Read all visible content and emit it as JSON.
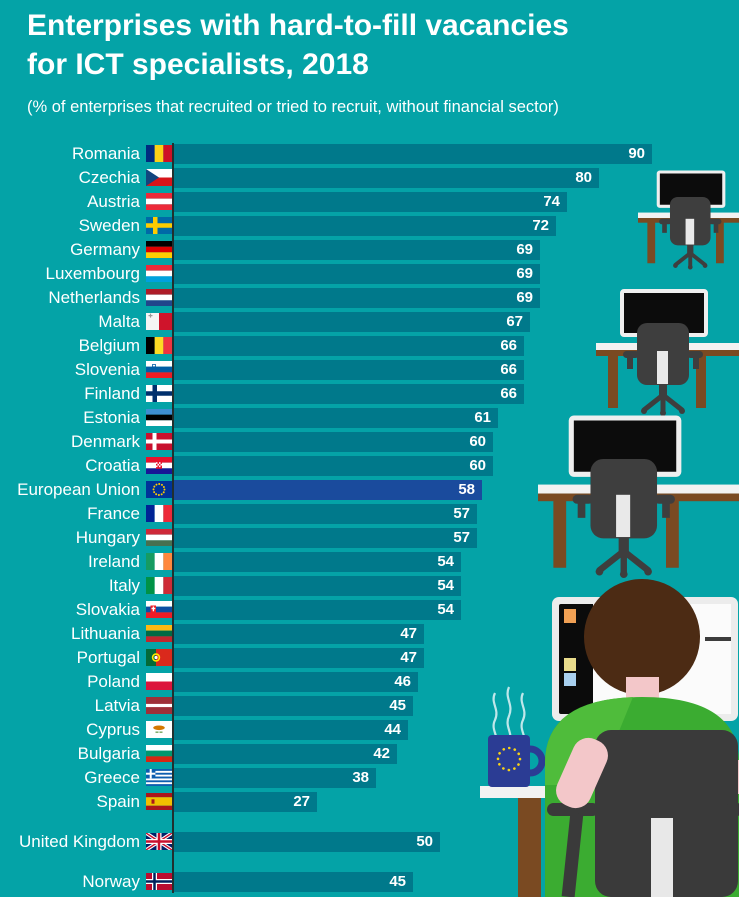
{
  "header": {
    "title_line1": "Enterprises with hard-to-fill vacancies",
    "title_line2": "for ICT specialists, 2018",
    "subtitle": "(% of enterprises that recruited or tried to recruit, without financial sector)"
  },
  "colors": {
    "background": "#04A3A7",
    "bar": "#00798B",
    "highlight": "#1A4B9D",
    "axis": "#21302F",
    "text": "#FFFFFF"
  },
  "chart_data": {
    "type": "bar",
    "orientation": "horizontal",
    "title": "Enterprises with hard-to-fill vacancies for ICT specialists, 2018",
    "subtitle": "(% of enterprises that recruited or tried to recruit, without financial sector)",
    "unit": "% of enterprises",
    "xlim": [
      0,
      100
    ],
    "grid": false,
    "legend": "none",
    "highlight_label": "European Union",
    "categories": [
      "Romania",
      "Czechia",
      "Austria",
      "Sweden",
      "Germany",
      "Luxembourg",
      "Netherlands",
      "Malta",
      "Belgium",
      "Slovenia",
      "Finland",
      "Estonia",
      "Denmark",
      "Croatia",
      "European Union",
      "France",
      "Hungary",
      "Ireland",
      "Italy",
      "Slovakia",
      "Lithuania",
      "Portugal",
      "Poland",
      "Latvia",
      "Cyprus",
      "Bulgaria",
      "Greece",
      "Spain",
      "United Kingdom",
      "Norway"
    ],
    "values": [
      90,
      80,
      74,
      72,
      69,
      69,
      69,
      67,
      66,
      66,
      66,
      61,
      60,
      60,
      58,
      57,
      57,
      54,
      54,
      54,
      47,
      47,
      46,
      45,
      44,
      42,
      38,
      27,
      50,
      45
    ],
    "rows": [
      {
        "label": "Romania",
        "value": 90,
        "flag": "ro",
        "group": "eu"
      },
      {
        "label": "Czechia",
        "value": 80,
        "flag": "cz",
        "group": "eu"
      },
      {
        "label": "Austria",
        "value": 74,
        "flag": "at",
        "group": "eu"
      },
      {
        "label": "Sweden",
        "value": 72,
        "flag": "se",
        "group": "eu"
      },
      {
        "label": "Germany",
        "value": 69,
        "flag": "de",
        "group": "eu"
      },
      {
        "label": "Luxembourg",
        "value": 69,
        "flag": "lu",
        "group": "eu"
      },
      {
        "label": "Netherlands",
        "value": 69,
        "flag": "nl",
        "group": "eu"
      },
      {
        "label": "Malta",
        "value": 67,
        "flag": "mt",
        "group": "eu"
      },
      {
        "label": "Belgium",
        "value": 66,
        "flag": "be",
        "group": "eu"
      },
      {
        "label": "Slovenia",
        "value": 66,
        "flag": "si",
        "group": "eu"
      },
      {
        "label": "Finland",
        "value": 66,
        "flag": "fi",
        "group": "eu"
      },
      {
        "label": "Estonia",
        "value": 61,
        "flag": "ee",
        "group": "eu"
      },
      {
        "label": "Denmark",
        "value": 60,
        "flag": "dk",
        "group": "eu"
      },
      {
        "label": "Croatia",
        "value": 60,
        "flag": "hr",
        "group": "eu"
      },
      {
        "label": "European Union",
        "value": 58,
        "flag": "eu",
        "group": "eu",
        "highlight": true
      },
      {
        "label": "France",
        "value": 57,
        "flag": "fr",
        "group": "eu"
      },
      {
        "label": "Hungary",
        "value": 57,
        "flag": "hu",
        "group": "eu"
      },
      {
        "label": "Ireland",
        "value": 54,
        "flag": "ie",
        "group": "eu"
      },
      {
        "label": "Italy",
        "value": 54,
        "flag": "it",
        "group": "eu"
      },
      {
        "label": "Slovakia",
        "value": 54,
        "flag": "sk",
        "group": "eu"
      },
      {
        "label": "Lithuania",
        "value": 47,
        "flag": "lt",
        "group": "eu"
      },
      {
        "label": "Portugal",
        "value": 47,
        "flag": "pt",
        "group": "eu"
      },
      {
        "label": "Poland",
        "value": 46,
        "flag": "pl",
        "group": "eu"
      },
      {
        "label": "Latvia",
        "value": 45,
        "flag": "lv",
        "group": "eu"
      },
      {
        "label": "Cyprus",
        "value": 44,
        "flag": "cy",
        "group": "eu"
      },
      {
        "label": "Bulgaria",
        "value": 42,
        "flag": "bg",
        "group": "eu"
      },
      {
        "label": "Greece",
        "value": 38,
        "flag": "gr",
        "group": "eu"
      },
      {
        "label": "Spain",
        "value": 27,
        "flag": "es",
        "group": "eu"
      },
      {
        "label": "United Kingdom",
        "value": 50,
        "flag": "gb",
        "group": "non_eu"
      },
      {
        "label": "Norway",
        "value": 45,
        "flag": "no",
        "group": "non_eu"
      }
    ]
  }
}
